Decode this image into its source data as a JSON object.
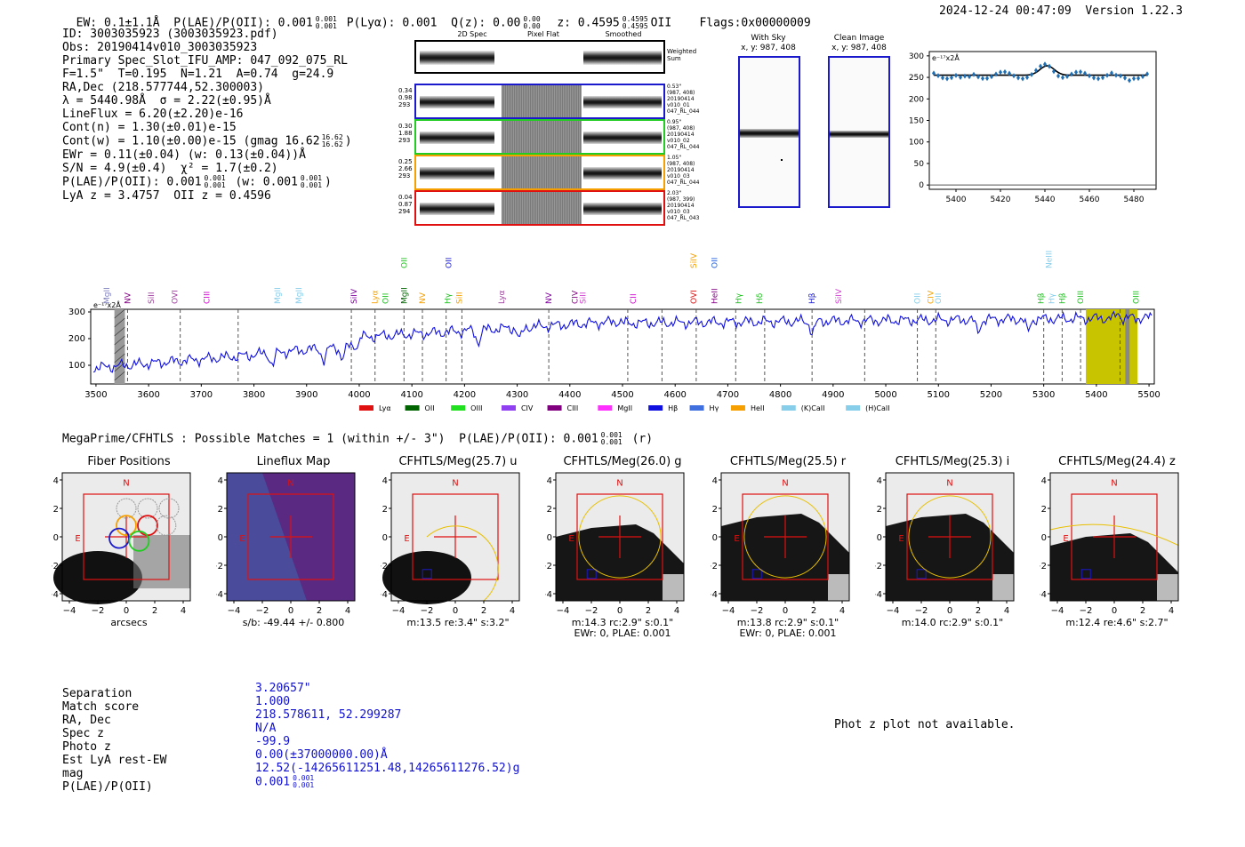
{
  "header": {
    "ew": "EW: 0.1±1.1Å",
    "plae": "P(LAE)/P(OII): 0.001",
    "plae_sup": "0.001",
    "plae_sub": "0.001",
    "plya": "P(Lyα): 0.001",
    "qz": "Q(z): 0.00",
    "qz_sup": "0.00",
    "qz_sub": "0.00",
    "z": "z: 0.4595",
    "z_sup": "0.4595",
    "z_sub": "0.4595",
    "z_line": "OII",
    "flags": "Flags:0x00000009",
    "datetime": "2024-12-24 00:47:09",
    "version": "Version 1.22.3"
  },
  "info": {
    "lines": [
      "ID: 3003035923 (3003035923.pdf)",
      "Obs: 20190414v010_3003035923",
      "Primary Spec_Slot_IFU_AMP: 047_092_075_RL",
      "F=1.5\"  T=0.195  N=1.21  A=0.74  g=24.9",
      "RA,Dec (218.577744,52.300003)",
      "λ = 5440.98Å  σ = 2.22(±0.95)Å",
      "LineFlux = 6.20(±2.20)e-16",
      "Cont(n) = 1.30(±0.01)e-15",
      "Cont(w) = 1.10(±0.00)e-15 (gmag 16.62",
      "EWr = 0.11(±0.04) (w: 0.13(±0.04))Å",
      "S/N = 4.9(±0.4)  χ² = 1.7(±0.2)",
      "P(LAE)/P(OII): 0.001",
      "LyA z = 3.4757  OII z = 0.4596"
    ],
    "gmag_sup": "16.62",
    "gmag_sub": "16.62",
    "plae_extra": "(w: 0.001",
    "plae_sup": "0.001",
    "plae_sub": "0.001"
  },
  "spec2d": {
    "col_titles": [
      "2D Spec",
      "Pixel Flat",
      "Smoothed"
    ],
    "weighted_label": "Weighted Sum",
    "rows": [
      {
        "left": [
          "0.34",
          "0.98",
          "293"
        ],
        "right": [
          "0.53\"",
          "(987, 408)",
          "20190414",
          "v010_01",
          "047_RL_044"
        ],
        "color": "#1a1acc"
      },
      {
        "left": [
          "0.30",
          "1.88",
          "293"
        ],
        "right": [
          "0.95\"",
          "(987, 408)",
          "20190414",
          "v010_02",
          "047_RL_044"
        ],
        "color": "#22cc22"
      },
      {
        "left": [
          "0.25",
          "2.66",
          "293"
        ],
        "right": [
          "1.05\"",
          "(987, 408)",
          "20190414",
          "v010_03",
          "047_RL_044"
        ],
        "color": "#f5a000"
      },
      {
        "left": [
          "0.04",
          "0.87",
          "294"
        ],
        "right": [
          "2.03\"",
          "(987, 399)",
          "20190414",
          "v010_03",
          "047_RL_043"
        ],
        "color": "#e01010"
      }
    ]
  },
  "sky": {
    "with_sky_title": "With Sky",
    "with_sky_xy": "x, y: 987, 408",
    "clean_title": "Clean Image",
    "clean_xy": "x, y: 987, 408"
  },
  "zoom_plot": {
    "unit": "e⁻¹⁷x2Å",
    "yticks": [
      "300",
      "250",
      "200",
      "150",
      "100",
      "50",
      "0"
    ],
    "xticks": [
      "5400",
      "5420",
      "5440",
      "5460",
      "5480"
    ]
  },
  "full_spec": {
    "unit": "e⁻¹⁷x2Å",
    "yticks": [
      "300",
      "200",
      "100"
    ],
    "xticks": [
      "3500",
      "3600",
      "3700",
      "3800",
      "3900",
      "4000",
      "4100",
      "4200",
      "4300",
      "4400",
      "4500",
      "4600",
      "4700",
      "4800",
      "4900",
      "5000",
      "5100",
      "5200",
      "5300",
      "5400",
      "5500"
    ],
    "line_labels": [
      {
        "name": "MgII",
        "color": "#8080c0",
        "x": 3520,
        "tier": 0
      },
      {
        "name": "NV",
        "color": "#800080",
        "x": 3560,
        "tier": 0
      },
      {
        "name": "SiII",
        "color": "#a040a0",
        "x": 3605,
        "tier": 0
      },
      {
        "name": "OVI",
        "color": "#a040a0",
        "x": 3650,
        "tier": 0
      },
      {
        "name": "CIII",
        "color": "#d000d0",
        "x": 3710,
        "tier": 0
      },
      {
        "name": "MgII",
        "color": "#87ceeb",
        "x": 3845,
        "tier": 0
      },
      {
        "name": "MgII",
        "color": "#87ceeb",
        "x": 3885,
        "tier": 0
      },
      {
        "name": "SiIV",
        "color": "#8000a0",
        "x": 3990,
        "tier": 0
      },
      {
        "name": "Lyα",
        "color": "#f5a000",
        "x": 4030,
        "tier": 0
      },
      {
        "name": "OII",
        "color": "#20c020",
        "x": 4050,
        "tier": 0
      },
      {
        "name": "MgII",
        "color": "#006400",
        "x": 4085,
        "tier": 0
      },
      {
        "name": "OII",
        "color": "#20c020",
        "x": 4085,
        "tier": 1
      },
      {
        "name": "NV",
        "color": "#f5a000",
        "x": 4120,
        "tier": 0
      },
      {
        "name": "Hγ",
        "color": "#20c020",
        "x": 4168,
        "tier": 0
      },
      {
        "name": "OII",
        "color": "#2020d0",
        "x": 4170,
        "tier": 1
      },
      {
        "name": "SiII",
        "color": "#f5a000",
        "x": 4190,
        "tier": 0
      },
      {
        "name": "Lyα",
        "color": "#a040a0",
        "x": 4270,
        "tier": 0
      },
      {
        "name": "NV",
        "color": "#8000a0",
        "x": 4360,
        "tier": 0
      },
      {
        "name": "CIV",
        "color": "#800080",
        "x": 4410,
        "tier": 0
      },
      {
        "name": "SiII",
        "color": "#d040d0",
        "x": 4425,
        "tier": 0
      },
      {
        "name": "CII",
        "color": "#d000d0",
        "x": 4520,
        "tier": 0
      },
      {
        "name": "OVI",
        "color": "#e01010",
        "x": 4635,
        "tier": 0
      },
      {
        "name": "SiIV",
        "color": "#f5a000",
        "x": 4635,
        "tier": 1
      },
      {
        "name": "HeII",
        "color": "#800080",
        "x": 4675,
        "tier": 0
      },
      {
        "name": "OII",
        "color": "#2060e0",
        "x": 4675,
        "tier": 1
      },
      {
        "name": "Hγ",
        "color": "#20c020",
        "x": 4720,
        "tier": 0
      },
      {
        "name": "Hδ",
        "color": "#20c020",
        "x": 4760,
        "tier": 0
      },
      {
        "name": "Hβ",
        "color": "#2020d0",
        "x": 4860,
        "tier": 0
      },
      {
        "name": "SiIV",
        "color": "#d040d0",
        "x": 4910,
        "tier": 0
      },
      {
        "name": "OII",
        "color": "#87ceeb",
        "x": 5060,
        "tier": 0
      },
      {
        "name": "CIV",
        "color": "#f5a000",
        "x": 5085,
        "tier": 0
      },
      {
        "name": "OII",
        "color": "#87ceeb",
        "x": 5100,
        "tier": 0
      },
      {
        "name": "Hβ",
        "color": "#20c020",
        "x": 5295,
        "tier": 0
      },
      {
        "name": "NeIII",
        "color": "#87ceeb",
        "x": 5310,
        "tier": 1
      },
      {
        "name": "Hγ",
        "color": "#87ceeb",
        "x": 5315,
        "tier": 0
      },
      {
        "name": "Hβ",
        "color": "#20c020",
        "x": 5335,
        "tier": 0
      },
      {
        "name": "OIII",
        "color": "#20c020",
        "x": 5370,
        "tier": 0
      },
      {
        "name": "OIII",
        "color": "#20c020",
        "x": 5475,
        "tier": 0
      }
    ],
    "legend": [
      {
        "name": "Lyα",
        "color": "#e01010"
      },
      {
        "name": "OII",
        "color": "#006400"
      },
      {
        "name": "OIII",
        "color": "#20e020"
      },
      {
        "name": "CIV",
        "color": "#9040f0"
      },
      {
        "name": "CIII",
        "color": "#800080"
      },
      {
        "name": "MgII",
        "color": "#ff30ff"
      },
      {
        "name": "Hβ",
        "color": "#1010e0"
      },
      {
        "name": "Hγ",
        "color": "#4070e0"
      },
      {
        "name": "HeII",
        "color": "#f5a000"
      },
      {
        "name": "(K)CaII",
        "color": "#87ceeb"
      },
      {
        "name": "(H)CaII",
        "color": "#87ceeb"
      }
    ]
  },
  "matches": {
    "text": "MegaPrime/CFHTLS : Possible Matches = 1 (within +/- 3\")  P(LAE)/P(OII): 0.001",
    "sup": "0.001",
    "sub": "0.001",
    "suffix": "(r)"
  },
  "cutouts": [
    {
      "title": "Fiber Positions",
      "cap1": "arcsecs",
      "cap2": ""
    },
    {
      "title": "Lineflux Map",
      "cap1": "s/b: -49.44 +/- 0.800",
      "cap2": ""
    },
    {
      "title": "CFHTLS/Meg(25.7) u",
      "cap1": "m:13.5  re:3.4\"  s:3.2\"",
      "cap2": ""
    },
    {
      "title": "CFHTLS/Meg(26.0) g",
      "cap1": "m:14.3 rc:2.9\"  s:0.1\"",
      "cap2": "EWr: 0, PLAE: 0.001"
    },
    {
      "title": "CFHTLS/Meg(25.5) r",
      "cap1": "m:13.8 rc:2.9\"  s:0.1\"",
      "cap2": "EWr: 0, PLAE: 0.001"
    },
    {
      "title": "CFHTLS/Meg(25.3) i",
      "cap1": "m:14.0 rc:2.9\"  s:0.1\"",
      "cap2": ""
    },
    {
      "title": "CFHTLS/Meg(24.4) z",
      "cap1": "m:12.4  re:4.6\"  s:2.7\"",
      "cap2": ""
    }
  ],
  "cut_ticks": [
    "4",
    "2",
    "0",
    "−2",
    "−4"
  ],
  "compass": {
    "n": "N",
    "e": "E"
  },
  "bottom": {
    "labels": [
      "Separation",
      "Match score",
      "RA, Dec",
      "Spec z",
      "Photo z",
      "Est LyA rest-EW",
      "mag",
      "P(LAE)/P(OII)"
    ],
    "values": [
      "3.20657\"",
      "1.000",
      "218.578611, 52.299287",
      "N/A",
      "-99.9",
      "0.00(±37000000.00)Å",
      "12.52(-14265611251.48,14265611276.52)g",
      "0.001"
    ],
    "plae_sup": "0.001",
    "plae_sub": "0.001",
    "photz_msg": "Phot z plot not available."
  }
}
